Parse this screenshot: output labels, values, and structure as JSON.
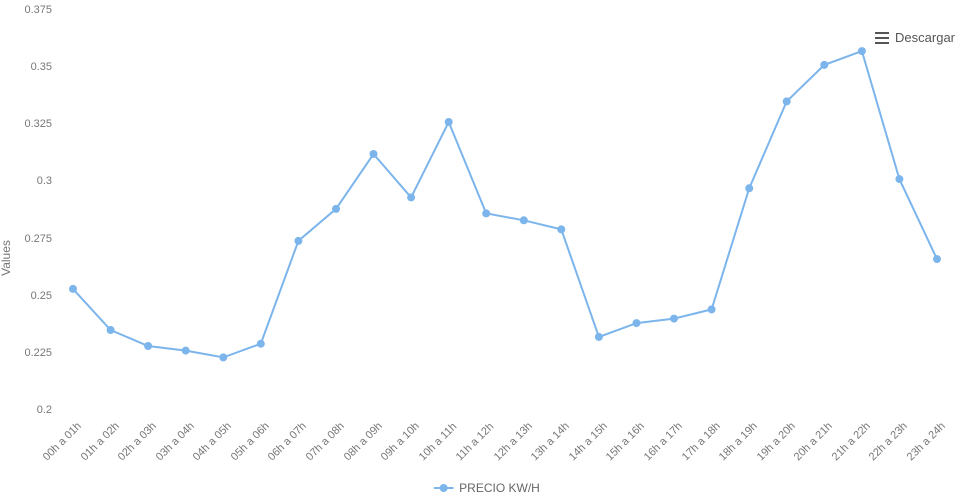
{
  "chart": {
    "type": "line",
    "y_axis_label": "Values",
    "ylim": [
      0.2,
      0.375
    ],
    "yticks": [
      0.2,
      0.225,
      0.25,
      0.275,
      0.3,
      0.325,
      0.35,
      0.375
    ],
    "categories": [
      "00h a 01h",
      "01h a 02h",
      "02h a 03h",
      "03h a 04h",
      "04h a 05h",
      "05h a 06h",
      "06h a 07h",
      "07h a 08h",
      "08h a 09h",
      "09h a 10h",
      "10h a 11h",
      "11h a 12h",
      "12h a 13h",
      "13h a 14h",
      "14h a 15h",
      "15h a 16h",
      "16h a 17h",
      "17h a 18h",
      "18h a 19h",
      "19h a 20h",
      "20h a 21h",
      "21h a 22h",
      "22h a 23h",
      "23h a 24h"
    ],
    "values": [
      0.253,
      0.235,
      0.228,
      0.226,
      0.223,
      0.229,
      0.274,
      0.288,
      0.312,
      0.293,
      0.326,
      0.286,
      0.283,
      0.279,
      0.232,
      0.238,
      0.24,
      0.244,
      0.297,
      0.335,
      0.351,
      0.357,
      0.301,
      0.266
    ],
    "series_name": "PRECIO KW/H",
    "line_color": "#7cb5ec",
    "marker_fill": "#7cb5ec",
    "marker_radius": 4,
    "line_width": 2,
    "background_color": "#ffffff",
    "axis_text_color": "#777777",
    "x_tick_rotation_deg": -45
  },
  "toolbar": {
    "download_label": "Descargar"
  },
  "legend": {
    "label": "PRECIO KW/H"
  }
}
